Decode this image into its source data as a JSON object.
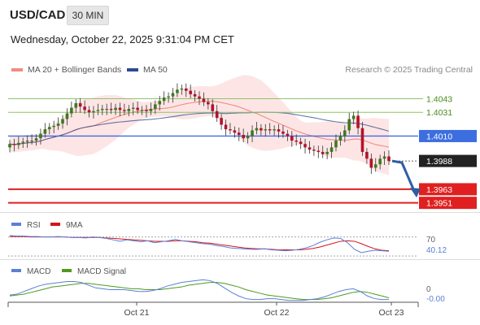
{
  "header": {
    "symbol": "USD/CAD",
    "timeframe": "30 MIN",
    "timestamp": "Wednesday, October 22, 2025 9:31:04 PM CET"
  },
  "legend": {
    "ma20_label": "MA 20 + Bollinger Bands",
    "ma50_label": "MA 50",
    "credit": "Research © 2025 Trading Central"
  },
  "colors": {
    "ma20": "#f28b82",
    "bollinger_fill": "#fde0e0",
    "ma50": "#2c4b8f",
    "candle_up": "#3d7a1c",
    "candle_down": "#b3122a",
    "resistance": "#8fc46b",
    "pivot": "#3d6ee0",
    "support": "#e02020",
    "arrow": "#2e5fa3",
    "rsi": "#5b7fd6",
    "rsi_ma": "#d4141e",
    "macd": "#5b7fd6",
    "macd_signal": "#4f9a1e"
  },
  "chart_data": {
    "type": "candlestick",
    "price_axis": {
      "ylim": [
        1.3945,
        1.4062
      ]
    },
    "close_series": [
      1.4003,
      1.4002,
      1.4004,
      1.4005,
      1.4006,
      1.4006,
      1.4008,
      1.4012,
      1.4016,
      1.4018,
      1.4019,
      1.4021,
      1.4025,
      1.403,
      1.4035,
      1.4039,
      1.4036,
      1.4033,
      1.4031,
      1.4032,
      1.4033,
      1.4034,
      1.4034,
      1.4033,
      1.4035,
      1.4033,
      1.4032,
      1.4034,
      1.4035,
      1.4033,
      1.4033,
      1.4032,
      1.4034,
      1.4038,
      1.4041,
      1.4044,
      1.4045,
      1.4048,
      1.4051,
      1.4052,
      1.405,
      1.4047,
      1.4045,
      1.4043,
      1.404,
      1.4038,
      1.4032,
      1.4026,
      1.402,
      1.4016,
      1.4015,
      1.4013,
      1.4011,
      1.4008,
      1.401,
      1.4015,
      1.4017,
      1.4015,
      1.4016,
      1.4015,
      1.4016,
      1.4014,
      1.4012,
      1.401,
      1.4006,
      1.4005,
      1.4003,
      1.4,
      1.3998,
      1.3997,
      1.3996,
      1.3994,
      1.3996,
      1.4,
      1.4006,
      1.401,
      1.4015,
      1.4025,
      1.4028,
      1.4017,
      1.3996,
      1.399,
      1.3982,
      1.3985,
      1.399,
      1.3992,
      1.3988
    ],
    "levels": [
      {
        "value": "1.4043",
        "type": "resistance"
      },
      {
        "value": "1.4031",
        "type": "resistance"
      },
      {
        "value": "1.4010",
        "type": "pivot"
      },
      {
        "value": "1.3988",
        "type": "last"
      },
      {
        "value": "1.3963",
        "type": "support"
      },
      {
        "value": "1.3951",
        "type": "support"
      }
    ],
    "x_ticks": [
      "Oct 21",
      "Oct 22",
      "Oct 23"
    ],
    "rsi": {
      "label": "RSI",
      "ma_label": "9MA",
      "level_label": "70",
      "value_label": "40.12",
      "ylim": [
        25,
        78
      ],
      "values": [
        73,
        72,
        72,
        71,
        71,
        70,
        70,
        71,
        70,
        69,
        69,
        68,
        70,
        69,
        67,
        64,
        61,
        64,
        62,
        60,
        62,
        58,
        60,
        62,
        65,
        62,
        60,
        58,
        56,
        55,
        52,
        50,
        47,
        46,
        45,
        44,
        44,
        45,
        43,
        42,
        41,
        42,
        44,
        47,
        52,
        59,
        64,
        68,
        67,
        58,
        44,
        37,
        40,
        42,
        41,
        40
      ],
      "ma_values": [
        71,
        71,
        71,
        70,
        70,
        70,
        70,
        70,
        70,
        69,
        69,
        69,
        69,
        69,
        68,
        67,
        66,
        65,
        64,
        63,
        62,
        61,
        61,
        61,
        62,
        62,
        61,
        60,
        58,
        57,
        55,
        53,
        51,
        49,
        47,
        46,
        45,
        45,
        44,
        43,
        43,
        43,
        43,
        44,
        46,
        49,
        53,
        57,
        61,
        62,
        61,
        56,
        50,
        45,
        42,
        41
      ]
    },
    "macd": {
      "label": "MACD",
      "signal_label": "MACD Signal",
      "level_label": "0",
      "value_label": "-0.00",
      "ylim": [
        -0.0006,
        0.0022
      ],
      "values": [
        0.0002,
        0.0003,
        0.0006,
        0.0009,
        0.0012,
        0.0014,
        0.0015,
        0.0016,
        0.0017,
        0.0017,
        0.0016,
        0.0013,
        0.001,
        0.0009,
        0.0008,
        0.0008,
        0.0008,
        0.0007,
        0.0006,
        0.0006,
        0.0007,
        0.0009,
        0.0012,
        0.0014,
        0.0016,
        0.0017,
        0.0018,
        0.0019,
        0.0018,
        0.0015,
        0.001,
        0.0005,
        0.0001,
        -0.0002,
        -0.0003,
        -0.0003,
        -0.0002,
        -0.0002,
        -0.0003,
        -0.0004,
        -0.0004,
        -0.0004,
        -0.0003,
        -0.0002,
        0.0,
        0.0003,
        0.0006,
        0.0008,
        0.0009,
        0.0006,
        0.0001,
        -0.0002,
        -0.0003,
        -0.0003
      ],
      "signal_values": [
        0.0001,
        0.0002,
        0.0003,
        0.0005,
        0.0007,
        0.0009,
        0.0011,
        0.0012,
        0.0013,
        0.0014,
        0.0015,
        0.0015,
        0.0014,
        0.0013,
        0.0012,
        0.0011,
        0.001,
        0.0009,
        0.0009,
        0.0008,
        0.0008,
        0.0008,
        0.0009,
        0.001,
        0.0011,
        0.0013,
        0.0014,
        0.0015,
        0.0016,
        0.0016,
        0.0015,
        0.0013,
        0.0011,
        0.0008,
        0.0006,
        0.0004,
        0.0002,
        0.0001,
        0.0,
        -0.0001,
        -0.0002,
        -0.0003,
        -0.0003,
        -0.0003,
        -0.0002,
        -0.0001,
        0.0001,
        0.0003,
        0.0005,
        0.0006,
        0.0005,
        0.0003,
        0.0001,
        -0.0001
      ]
    }
  }
}
